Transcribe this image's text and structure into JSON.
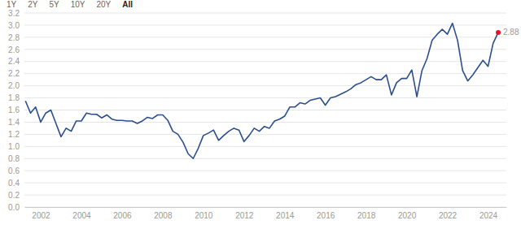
{
  "toolbar": {
    "buttons": [
      "1Y",
      "2Y",
      "5Y",
      "10Y",
      "20Y",
      "All"
    ],
    "selected": "All"
  },
  "chart_data": {
    "type": "line",
    "color": "#2b4f8e",
    "grid": true,
    "x": [
      2001.25,
      2001.5,
      2001.75,
      2002.0,
      2002.25,
      2002.5,
      2002.75,
      2003.0,
      2003.25,
      2003.5,
      2003.75,
      2004.0,
      2004.25,
      2004.5,
      2004.75,
      2005.0,
      2005.25,
      2005.5,
      2005.75,
      2006.0,
      2006.25,
      2006.5,
      2006.75,
      2007.0,
      2007.25,
      2007.5,
      2007.75,
      2008.0,
      2008.25,
      2008.5,
      2008.75,
      2009.0,
      2009.25,
      2009.5,
      2009.75,
      2010.0,
      2010.25,
      2010.5,
      2010.75,
      2011.0,
      2011.25,
      2011.5,
      2011.75,
      2012.0,
      2012.25,
      2012.5,
      2012.75,
      2013.0,
      2013.25,
      2013.5,
      2013.75,
      2014.0,
      2014.25,
      2014.5,
      2014.75,
      2015.0,
      2015.25,
      2015.5,
      2015.75,
      2016.0,
      2016.25,
      2016.5,
      2016.75,
      2017.0,
      2017.25,
      2017.5,
      2017.75,
      2018.0,
      2018.25,
      2018.5,
      2018.75,
      2019.0,
      2019.25,
      2019.5,
      2019.75,
      2020.0,
      2020.25,
      2020.5,
      2020.75,
      2021.0,
      2021.25,
      2021.5,
      2021.75,
      2022.0,
      2022.25,
      2022.5,
      2022.75,
      2023.0,
      2023.25,
      2023.5,
      2023.75,
      2024.0,
      2024.25,
      2024.5
    ],
    "values": [
      1.75,
      1.55,
      1.65,
      1.4,
      1.55,
      1.6,
      1.38,
      1.16,
      1.3,
      1.25,
      1.42,
      1.42,
      1.55,
      1.53,
      1.53,
      1.47,
      1.52,
      1.45,
      1.43,
      1.43,
      1.42,
      1.42,
      1.38,
      1.42,
      1.48,
      1.46,
      1.52,
      1.52,
      1.43,
      1.25,
      1.2,
      1.07,
      0.88,
      0.8,
      0.97,
      1.18,
      1.22,
      1.27,
      1.1,
      1.18,
      1.25,
      1.3,
      1.27,
      1.08,
      1.18,
      1.3,
      1.25,
      1.33,
      1.3,
      1.42,
      1.45,
      1.5,
      1.65,
      1.65,
      1.72,
      1.7,
      1.76,
      1.78,
      1.8,
      1.68,
      1.8,
      1.82,
      1.86,
      1.9,
      1.95,
      2.02,
      2.05,
      2.1,
      2.15,
      2.1,
      2.1,
      2.18,
      1.85,
      2.05,
      2.12,
      2.12,
      2.26,
      1.82,
      2.25,
      2.45,
      2.75,
      2.85,
      2.93,
      2.85,
      3.03,
      2.75,
      2.25,
      2.08,
      2.18,
      2.3,
      2.42,
      2.32,
      2.7,
      2.88
    ],
    "xlim": [
      2001.2,
      2024.9
    ],
    "xticks": [
      2002,
      2004,
      2006,
      2008,
      2010,
      2012,
      2014,
      2016,
      2018,
      2020,
      2022,
      2024
    ],
    "ylim": [
      0,
      3.2
    ],
    "yticks": [
      {
        "value": 0,
        "label": "0.0"
      },
      0.2,
      0.4,
      0.6,
      0.8,
      {
        "value": 1,
        "label": "1.0"
      },
      1.2,
      1.4,
      1.6,
      1.8,
      {
        "value": 2,
        "label": "2.0"
      },
      2.2,
      2.4,
      2.6,
      2.8,
      {
        "value": 3,
        "label": "3.0"
      },
      3.2
    ],
    "annotations": [
      {
        "x": 2024.5,
        "y": 2.88,
        "text": "2.88",
        "color": "#e8112d"
      }
    ]
  }
}
